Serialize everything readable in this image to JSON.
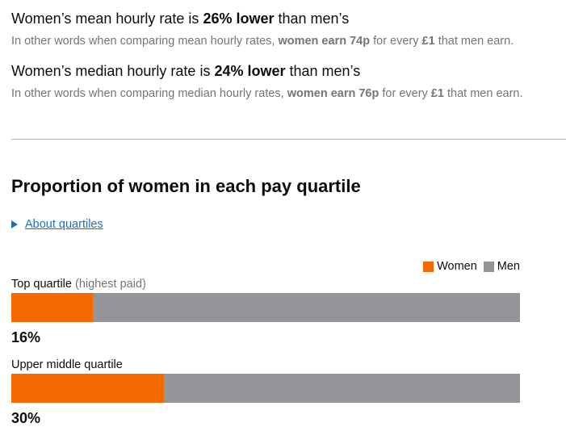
{
  "colors": {
    "women": "#f46a00",
    "men": "#939598",
    "link": "#1d70b8",
    "muted": "#6f777b"
  },
  "mean": {
    "pre": "Women’s mean hourly rate is ",
    "highlight": "26% lower",
    "post": " than men’s",
    "sub_pre": "In other words when comparing mean hourly rates, ",
    "sub_bold1": "women earn 74p",
    "sub_mid": " for every ",
    "sub_bold2": "£1",
    "sub_post": " that men earn."
  },
  "median": {
    "pre": "Women’s median hourly rate is ",
    "highlight": "24% lower",
    "post": " than men’s",
    "sub_pre": "In other words when comparing median hourly rates, ",
    "sub_bold1": "women earn 76p",
    "sub_mid": " for every ",
    "sub_bold2": "£1",
    "sub_post": " that men earn."
  },
  "quartiles_section": {
    "title": "Proportion of women in each pay quartile",
    "details_link": "About quartiles",
    "legend": {
      "women": "Women",
      "men": "Men"
    }
  },
  "quartiles": [
    {
      "label": "Top quartile",
      "note": "(highest paid)",
      "women_percent": 16,
      "percent_label": "16%"
    },
    {
      "label": "Upper middle quartile",
      "note": "",
      "women_percent": 30,
      "percent_label": "30%"
    }
  ]
}
